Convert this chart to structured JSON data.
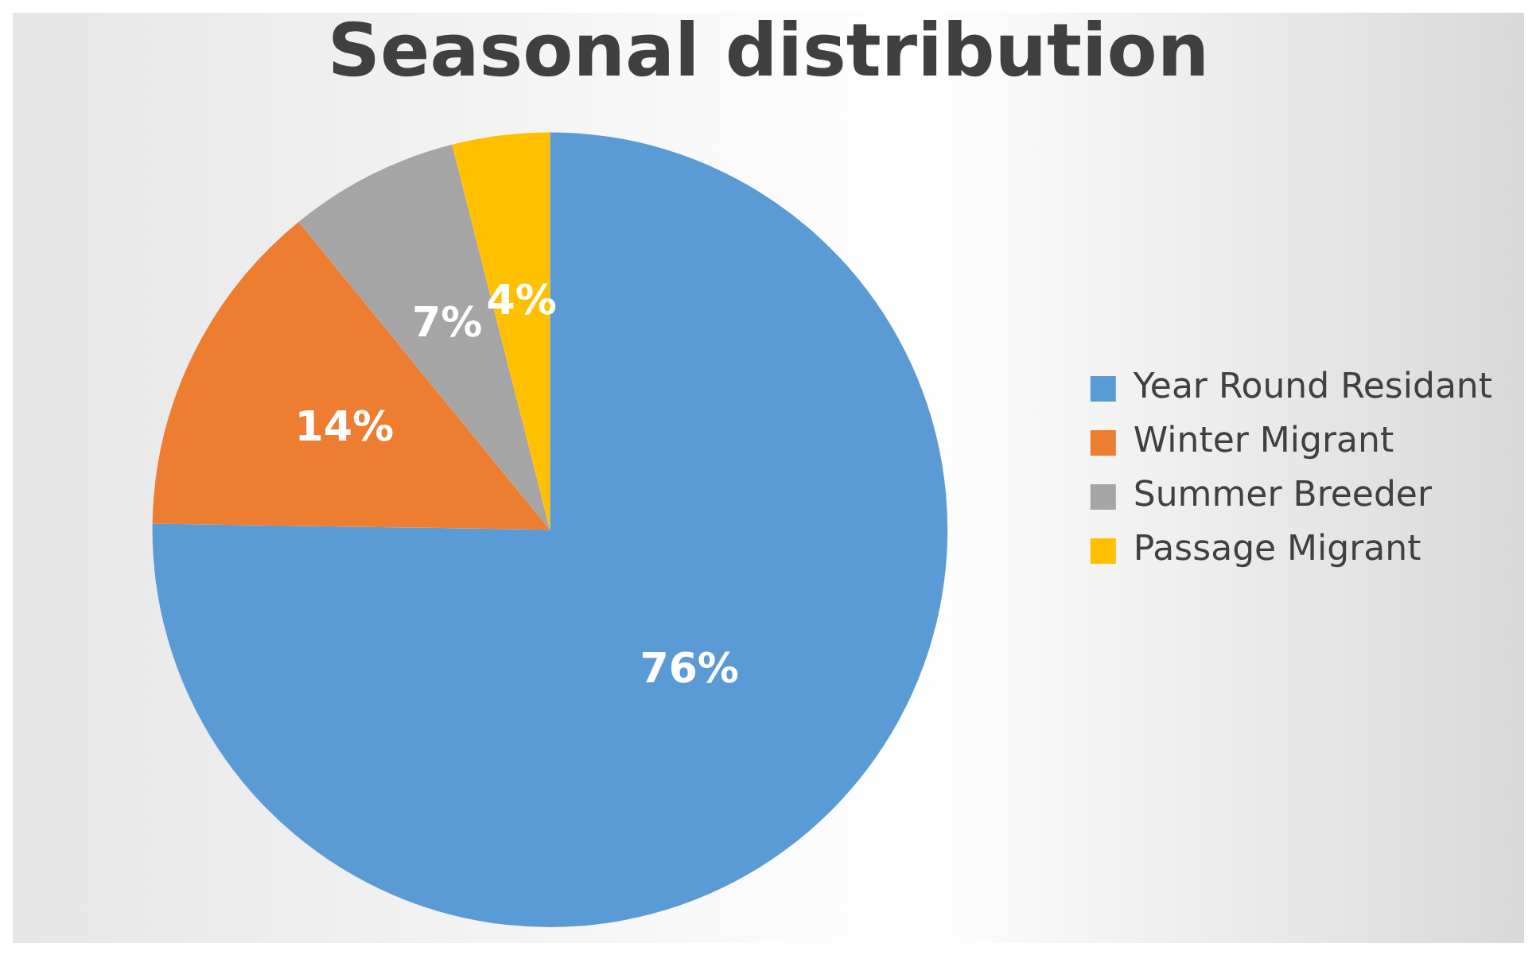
{
  "chart_data": {
    "type": "pie",
    "title": "Seasonal distribution",
    "categories": [
      "Year Round Residant",
      "Winter Migrant",
      "Summer Breeder",
      "Passage Migrant"
    ],
    "values": [
      76,
      14,
      7,
      4
    ],
    "colors": [
      "#5b9bd5",
      "#ed7d31",
      "#a5a5a5",
      "#ffc000"
    ],
    "value_labels": [
      "76%",
      "14%",
      "7%",
      "4%"
    ],
    "legend": "right"
  }
}
